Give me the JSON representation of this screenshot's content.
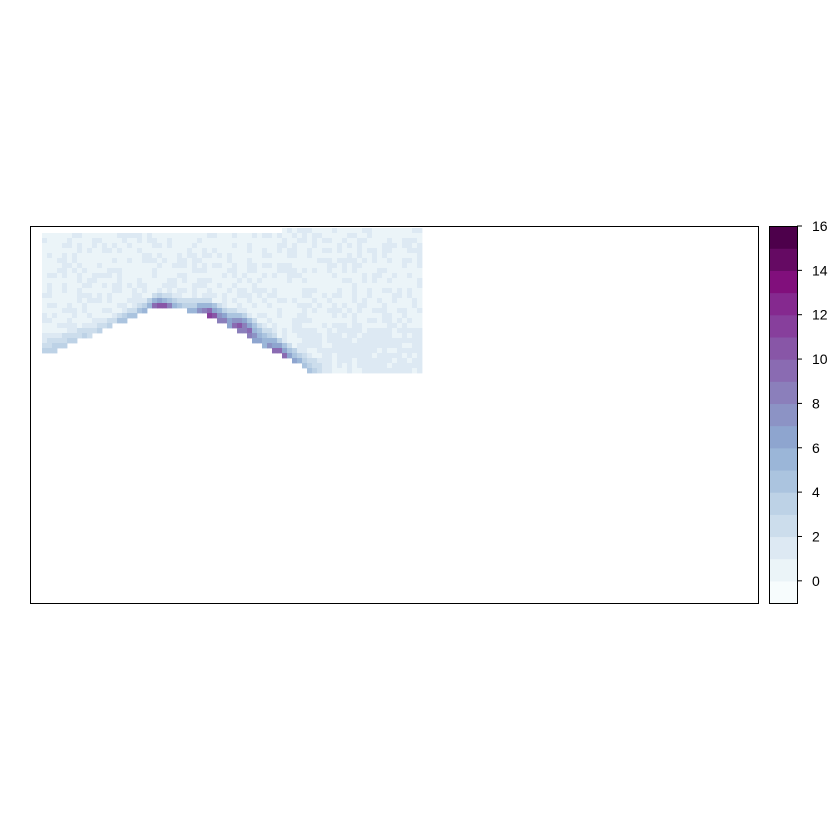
{
  "chart_data": {
    "type": "heatmap",
    "title": "",
    "xlabel": "",
    "ylabel": "",
    "axes_shown": false,
    "grid": false,
    "legend": {
      "type": "colorbar",
      "placement": "right",
      "range": [
        -1,
        16
      ],
      "ticks": [
        0,
        2,
        4,
        6,
        8,
        10,
        12,
        14,
        16
      ],
      "tick_labels": [
        "0",
        "2",
        "4",
        "6",
        "8",
        "10",
        "12",
        "14",
        "16"
      ],
      "colors": [
        "#f7fcfd",
        "#ebf4f8",
        "#dde9f3",
        "#ccddec",
        "#bdd2e6",
        "#abc4df",
        "#9bb6d8",
        "#8ea5cf",
        "#8c93c5",
        "#8b7fbb",
        "#8a6bb2",
        "#8856a7",
        "#873f9c",
        "#85298f",
        "#810f7c",
        "#650a63",
        "#4d004b"
      ]
    },
    "raster_extent_fraction": {
      "x": [
        0.0,
        0.52
      ],
      "y": [
        0.0,
        0.4
      ]
    },
    "raster_shape": "coastal band: faint low values (0-2) over the upper-left block, a curving ridge of higher values (6-15) along a diagonal arc from left-center to lower-middle",
    "ridge_path": [
      {
        "x": 0.0,
        "y": 0.25,
        "value": 3
      },
      {
        "x": 0.07,
        "y": 0.22,
        "value": 7
      },
      {
        "x": 0.13,
        "y": 0.19,
        "value": 13
      },
      {
        "x": 0.18,
        "y": 0.22,
        "value": 12
      },
      {
        "x": 0.22,
        "y": 0.26,
        "value": 11
      },
      {
        "x": 0.27,
        "y": 0.33,
        "value": 12
      },
      {
        "x": 0.31,
        "y": 0.38,
        "value": 9
      },
      {
        "x": 0.36,
        "y": 0.4,
        "value": 4
      }
    ]
  }
}
